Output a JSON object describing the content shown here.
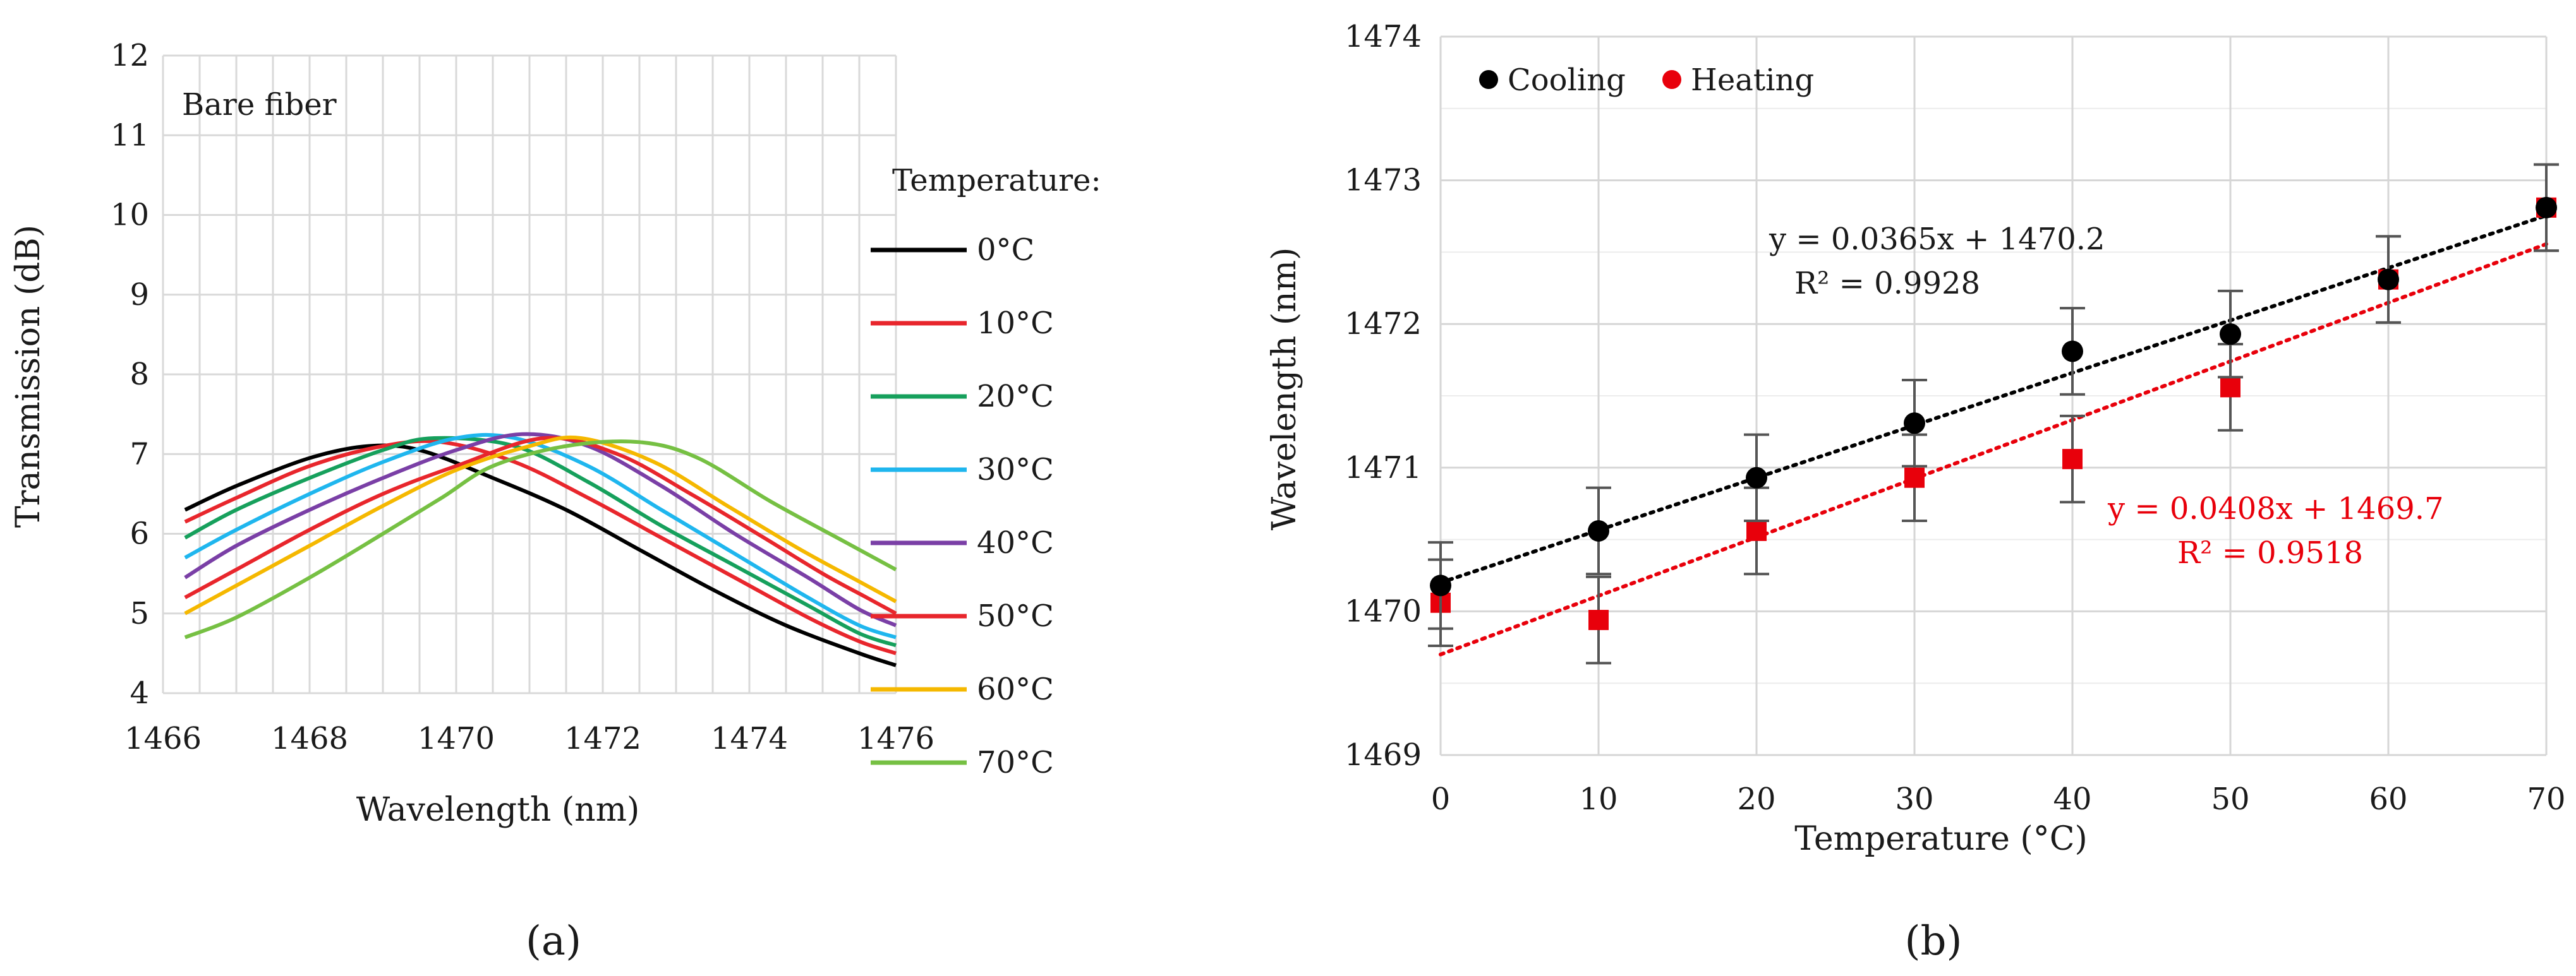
{
  "chart_data": [
    {
      "panel": "a",
      "panel_label": "(a)",
      "type": "line",
      "xlabel": "Wavelength (nm)",
      "ylabel": "Transmission (dB)",
      "xlim": [
        1466,
        1476
      ],
      "ylim": [
        4,
        12
      ],
      "xticks": [
        "1466",
        "1468",
        "1470",
        "1472",
        "1474",
        "1476"
      ],
      "yticks": [
        "4",
        "5",
        "6",
        "7",
        "8",
        "9",
        "10",
        "11",
        "12"
      ],
      "grid": true,
      "annotation": "Bare fiber",
      "legend_title": "Temperature:",
      "legend_position": "right",
      "series": [
        {
          "name": "0°C",
          "color": "#000000",
          "x": [
            1466.3,
            1467,
            1468,
            1468.8,
            1469.5,
            1470.5,
            1471.5,
            1472.5,
            1473.5,
            1474.5,
            1475.5,
            1476
          ],
          "y": [
            6.3,
            6.6,
            6.95,
            7.1,
            7.05,
            6.7,
            6.3,
            5.8,
            5.3,
            4.85,
            4.5,
            4.35
          ]
        },
        {
          "name": "10°C",
          "color": "#e8262c",
          "x": [
            1466.3,
            1467,
            1468,
            1469,
            1469.8,
            1470.8,
            1471.8,
            1472.8,
            1473.8,
            1474.8,
            1475.5,
            1476
          ],
          "y": [
            6.15,
            6.45,
            6.85,
            7.1,
            7.15,
            6.9,
            6.45,
            5.95,
            5.45,
            4.95,
            4.65,
            4.5
          ]
        },
        {
          "name": "20°C",
          "color": "#16a05c",
          "x": [
            1466.3,
            1467,
            1468,
            1469,
            1469.7,
            1470.8,
            1471.8,
            1472.8,
            1473.8,
            1474.8,
            1475.5,
            1476
          ],
          "y": [
            5.95,
            6.3,
            6.7,
            7.05,
            7.2,
            7.1,
            6.65,
            6.1,
            5.6,
            5.1,
            4.75,
            4.6
          ]
        },
        {
          "name": "30°C",
          "color": "#1fb6ee",
          "x": [
            1466.3,
            1467,
            1468,
            1469,
            1470,
            1470.8,
            1471.8,
            1472.8,
            1473.8,
            1474.8,
            1475.5,
            1476
          ],
          "y": [
            5.7,
            6.05,
            6.5,
            6.9,
            7.2,
            7.2,
            6.85,
            6.3,
            5.75,
            5.2,
            4.85,
            4.7
          ]
        },
        {
          "name": "40°C",
          "color": "#7a3fa6",
          "x": [
            1466.3,
            1467,
            1468,
            1469,
            1470,
            1470.9,
            1471.8,
            1472.8,
            1473.8,
            1474.8,
            1475.5,
            1476
          ],
          "y": [
            5.45,
            5.85,
            6.3,
            6.7,
            7.05,
            7.25,
            7.1,
            6.6,
            6.0,
            5.45,
            5.05,
            4.85
          ]
        },
        {
          "name": "50°C",
          "color": "#e8262c",
          "x": [
            1466.3,
            1467,
            1468,
            1469,
            1470,
            1471.2,
            1472.2,
            1473.2,
            1474.2,
            1475,
            1475.6,
            1476
          ],
          "y": [
            5.2,
            5.55,
            6.05,
            6.5,
            6.85,
            7.2,
            7.0,
            6.5,
            5.95,
            5.5,
            5.2,
            5.0
          ]
        },
        {
          "name": "60°C",
          "color": "#f5b800",
          "x": [
            1466.3,
            1467,
            1468,
            1469,
            1470,
            1471,
            1471.7,
            1472.7,
            1473.7,
            1474.7,
            1475.5,
            1476
          ],
          "y": [
            5.0,
            5.35,
            5.85,
            6.35,
            6.8,
            7.1,
            7.2,
            6.9,
            6.35,
            5.8,
            5.4,
            5.15
          ]
        },
        {
          "name": "70°C",
          "color": "#76c043",
          "x": [
            1466.3,
            1467,
            1468,
            1469,
            1469.8,
            1470.5,
            1471.5,
            1472.5,
            1473.3,
            1474.3,
            1475.3,
            1476
          ],
          "y": [
            4.7,
            4.95,
            5.45,
            6.0,
            6.45,
            6.85,
            7.1,
            7.15,
            6.95,
            6.4,
            5.9,
            5.55
          ]
        }
      ]
    },
    {
      "panel": "b",
      "panel_label": "(b)",
      "type": "scatter",
      "xlabel": "Temperature (°C)",
      "ylabel": "Wavelength (nm)",
      "xlim": [
        0,
        70
      ],
      "ylim": [
        1469,
        1474
      ],
      "xticks": [
        "0",
        "10",
        "20",
        "30",
        "40",
        "50",
        "60",
        "70"
      ],
      "yticks": [
        "1469",
        "1470",
        "1471",
        "1472",
        "1473",
        "1474"
      ],
      "grid": true,
      "legend_position": "top-left",
      "series": [
        {
          "name": "Cooling",
          "color": "#000000",
          "marker": "circle",
          "x": [
            0,
            10,
            20,
            30,
            40,
            50,
            60,
            70
          ],
          "y": [
            1470.18,
            1470.56,
            1470.93,
            1471.31,
            1471.81,
            1471.93,
            1472.31,
            1472.81
          ],
          "error": 0.3,
          "trendline": {
            "slope": 0.0365,
            "intercept": 1470.2,
            "equation": "y = 0.0365x + 1470.2",
            "r2": "R² = 0.9928"
          }
        },
        {
          "name": "Heating",
          "color": "#e8000b",
          "marker": "square",
          "x": [
            0,
            10,
            20,
            30,
            40,
            50,
            60,
            70
          ],
          "y": [
            1470.06,
            1469.94,
            1470.56,
            1470.93,
            1471.06,
            1471.56,
            1472.31,
            1472.81
          ],
          "error": 0.3,
          "trendline": {
            "slope": 0.0408,
            "intercept": 1469.7,
            "equation": "y = 0.0408x + 1469.7",
            "r2": "R² = 0.9518"
          }
        }
      ]
    }
  ]
}
